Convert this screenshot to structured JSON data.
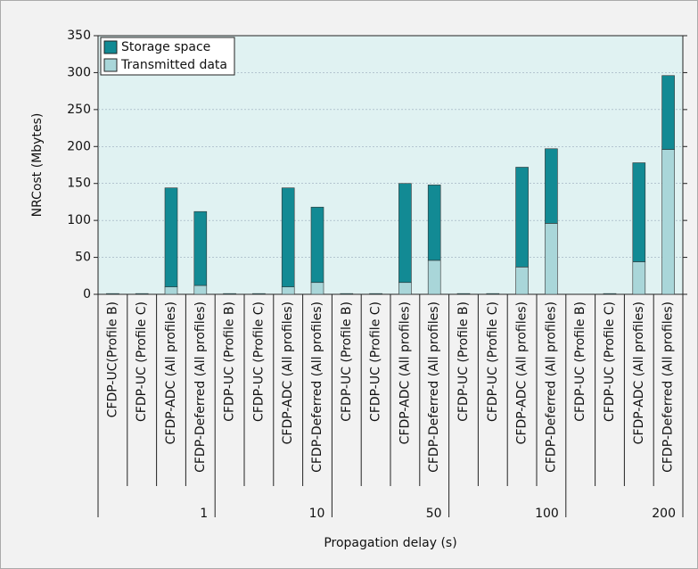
{
  "chart_data": {
    "type": "bar",
    "stacked": true,
    "xlabel": "Propagation delay (s)",
    "ylabel": "NRCost (Mbytes)",
    "categories": [
      "CFDP-UC(Profile B)",
      "CFDP-UC (Profile C)",
      "CFDP-ADC (All profiles)",
      "CFDP-Deferred (All profiles)",
      "CFDP-UC (Profile B)",
      "CFDP-UC (Profile C)",
      "CFDP-ADC (All profiles)",
      "CFDP-Deferred (All profiles)",
      "CFDP-UC (Profile B)",
      "CFDP-UC (Profile C)",
      "CFDP-ADC (All profiles)",
      "CFDP-Deferred (All profiles)",
      "CFDP-UC (Profile B)",
      "CFDP-UC (Profile C)",
      "CFDP-ADC (All profiles)",
      "CFDP-Deferred (All profiles)",
      "CFDP-UC (Profile B)",
      "CFDP-UC (Profile C)",
      "CFDP-ADC (All profiles)",
      "CFDP-Deferred (All profiles)"
    ],
    "groups": [
      "1",
      "10",
      "50",
      "100",
      "200"
    ],
    "series": [
      {
        "name": "Transmitted data",
        "color": "#a9d6d9",
        "values": [
          0,
          0,
          10,
          12,
          0,
          0,
          10,
          16,
          0,
          0,
          16,
          46,
          0,
          0,
          37,
          96,
          0,
          0,
          44,
          196
        ]
      },
      {
        "name": "Storage space",
        "color": "#128a94",
        "values": [
          1,
          1,
          134,
          100,
          1,
          1,
          134,
          102,
          1,
          1,
          134,
          102,
          1,
          1,
          135,
          101,
          0,
          1,
          134,
          100
        ]
      }
    ],
    "ylim": [
      0,
      350
    ],
    "yticks": [
      0,
      50,
      100,
      150,
      200,
      250,
      300,
      350
    ],
    "grid": true,
    "legend": "upper left"
  }
}
